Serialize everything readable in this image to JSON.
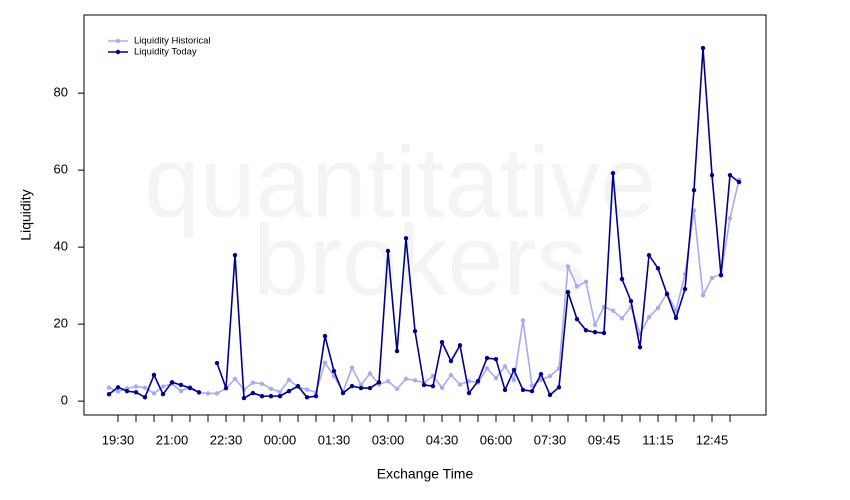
{
  "chart_data": {
    "type": "line",
    "watermark": [
      "quantitative",
      "brokers"
    ],
    "x_label": "Exchange Time",
    "y_label": "Liquidity",
    "categories": [
      null,
      "19:30",
      null,
      null,
      null,
      null,
      null,
      "21:00",
      null,
      null,
      null,
      null,
      null,
      "22:30",
      null,
      null,
      null,
      null,
      null,
      "00:00",
      null,
      null,
      null,
      null,
      null,
      "01:30",
      null,
      null,
      null,
      null,
      null,
      "03:00",
      null,
      null,
      null,
      null,
      null,
      "04:30",
      null,
      null,
      null,
      null,
      null,
      "06:00",
      null,
      null,
      null,
      null,
      null,
      "07:30",
      null,
      null,
      null,
      null,
      null,
      "09:45",
      null,
      null,
      null,
      null,
      null,
      "11:15",
      null,
      null,
      null,
      null,
      null,
      "12:45",
      null,
      null,
      null
    ],
    "series": [
      {
        "name": "Liquidity Historical",
        "color": "#aaaaf0",
        "values": [
          3.5,
          2.5,
          3.3,
          3.8,
          3.5,
          2.0,
          3.8,
          4.5,
          2.6,
          3.7,
          2.2,
          2.0,
          2.0,
          3.3,
          5.8,
          3.0,
          4.8,
          4.5,
          3.2,
          2.4,
          5.5,
          3.7,
          3.0,
          2.3,
          10.0,
          6.5,
          2.4,
          8.7,
          4.2,
          7.2,
          4.3,
          5.2,
          3.2,
          5.8,
          5.4,
          4.8,
          6.5,
          3.5,
          6.8,
          4.3,
          5.2,
          4.8,
          8.5,
          6.0,
          9.0,
          5.5,
          21.0,
          4.0,
          5.5,
          6.5,
          8.5,
          35.0,
          29.8,
          31.0,
          19.8,
          24.5,
          23.5,
          21.5,
          24.5,
          17.5,
          21.8,
          24.2,
          28.0,
          23.5,
          33.0,
          49.5,
          27.5,
          32.0,
          33.0,
          47.5,
          57.5
        ]
      },
      {
        "name": "Liquidity Today",
        "color": "#00008b",
        "values": [
          1.8,
          3.6,
          2.6,
          2.3,
          1.0,
          6.8,
          1.8,
          4.9,
          4.2,
          3.4,
          2.3,
          null,
          9.9,
          3.4,
          37.9,
          0.8,
          2.1,
          1.3,
          1.3,
          1.3,
          2.6,
          3.9,
          1.0,
          1.3,
          16.9,
          7.8,
          2.1,
          3.9,
          3.4,
          3.4,
          4.9,
          39.0,
          13.0,
          42.3,
          18.2,
          4.2,
          3.9,
          15.3,
          10.4,
          14.5,
          2.1,
          5.2,
          11.2,
          10.9,
          2.9,
          8.1,
          2.9,
          2.6,
          7.0,
          1.6,
          3.6,
          28.3,
          21.3,
          18.4,
          17.9,
          17.7,
          59.2,
          31.7,
          26.0,
          14.0,
          37.9,
          34.5,
          27.8,
          21.6,
          29.1,
          54.8,
          91.7,
          58.7,
          32.7,
          58.7,
          56.9
        ]
      }
    ],
    "ylim": [
      -3.6,
      100.3
    ],
    "yticks": [
      0,
      20,
      40,
      60,
      80
    ],
    "legend": "upper left",
    "markers": true
  }
}
